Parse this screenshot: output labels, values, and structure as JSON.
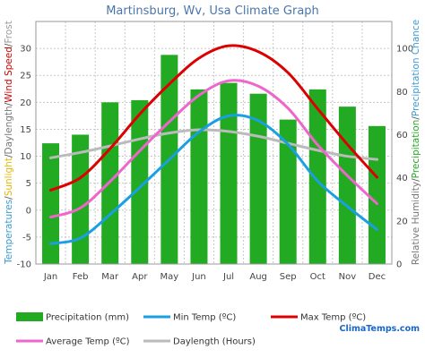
{
  "chart_data": {
    "type": "bar+line",
    "title": "Martinsburg, Wv, Usa Climate Graph",
    "categories": [
      "Jan",
      "Feb",
      "Mar",
      "Apr",
      "May",
      "Jun",
      "Jul",
      "Aug",
      "Sep",
      "Oct",
      "Nov",
      "Dec"
    ],
    "left_axis": {
      "ticks": [
        -10,
        -5,
        0,
        5,
        10,
        15,
        20,
        25,
        30
      ],
      "ylim": [
        -10,
        35
      ],
      "label_parts": [
        {
          "text": "Temperatures",
          "color": "#3a9bd5"
        },
        {
          "text": "/",
          "color": "#555555"
        },
        {
          "text": "Sunlight",
          "color": "#e6b800"
        },
        {
          "text": "/",
          "color": "#555555"
        },
        {
          "text": "Daylength",
          "color": "#777777"
        },
        {
          "text": "/",
          "color": "#555555"
        },
        {
          "text": "Wind Speed",
          "color": "#d00000"
        },
        {
          "text": "/",
          "color": "#555555"
        },
        {
          "text": "Frost",
          "color": "#999999"
        }
      ]
    },
    "right_axis": {
      "ticks": [
        0,
        20,
        40,
        60,
        80,
        100
      ],
      "ylim": [
        0,
        112.5
      ],
      "label_parts": [
        {
          "text": "Relative Humidity",
          "color": "#777777"
        },
        {
          "text": "/",
          "color": "#555555"
        },
        {
          "text": "Precipitation",
          "color": "#22aa22"
        },
        {
          "text": "/",
          "color": "#555555"
        },
        {
          "text": "Precipitation Chance",
          "color": "#3a9bd5"
        }
      ]
    },
    "series": [
      {
        "name": "Precipitation (mm)",
        "type": "bar",
        "axis": "right",
        "color": "#22aa22",
        "values": [
          56,
          60,
          75,
          76,
          97,
          81,
          84,
          79,
          67,
          81,
          73,
          64
        ]
      },
      {
        "name": "Min Temp (ºC)",
        "type": "line",
        "axis": "left",
        "color": "#1aa0e0",
        "values": [
          -6.2,
          -5.2,
          -0.8,
          4.2,
          9.4,
          14.5,
          17.5,
          16.6,
          12.2,
          5.4,
          0.7,
          -3.6
        ]
      },
      {
        "name": "Max Temp (ºC)",
        "type": "line",
        "axis": "left",
        "color": "#dd0000",
        "values": [
          3.7,
          6.0,
          11.4,
          17.8,
          23.4,
          28.2,
          30.5,
          29.4,
          25.5,
          18.8,
          12.2,
          6.1
        ]
      },
      {
        "name": "Average Temp (ºC)",
        "type": "line",
        "axis": "left",
        "color": "#ee66cc",
        "values": [
          -1.3,
          0.4,
          5.3,
          11.0,
          16.4,
          21.3,
          24.0,
          23.0,
          18.9,
          12.1,
          6.4,
          1.2
        ]
      },
      {
        "name": "Daylength (Hours)",
        "type": "line",
        "axis": "left",
        "color": "#bbbbbb",
        "values": [
          9.7,
          10.7,
          11.9,
          13.2,
          14.3,
          14.9,
          14.6,
          13.7,
          12.4,
          11.1,
          10.0,
          9.4
        ]
      }
    ],
    "grid": true,
    "legend_placement": "bottom"
  },
  "branding": "ClimaTemps.com"
}
